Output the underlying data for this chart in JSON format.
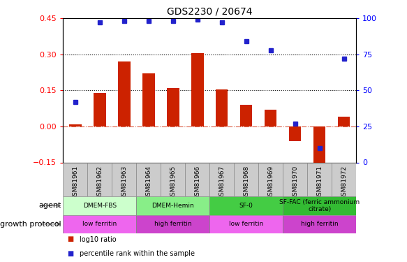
{
  "title": "GDS2230 / 20674",
  "samples": [
    "GSM81961",
    "GSM81962",
    "GSM81963",
    "GSM81964",
    "GSM81965",
    "GSM81966",
    "GSM81967",
    "GSM81968",
    "GSM81969",
    "GSM81970",
    "GSM81971",
    "GSM81972"
  ],
  "log10_ratio": [
    0.01,
    0.14,
    0.27,
    0.22,
    0.16,
    0.305,
    0.155,
    0.09,
    0.07,
    -0.06,
    -0.185,
    0.04
  ],
  "percentile_rank": [
    42,
    97,
    98,
    98,
    98,
    99,
    97,
    84,
    78,
    27,
    10,
    72
  ],
  "ylim_left": [
    -0.15,
    0.45
  ],
  "ylim_right": [
    0,
    100
  ],
  "yticks_left": [
    -0.15,
    0.0,
    0.15,
    0.3,
    0.45
  ],
  "yticks_right": [
    0,
    25,
    50,
    75,
    100
  ],
  "hlines_dotted": [
    0.15,
    0.3
  ],
  "hline_dashdot": 0.0,
  "bar_color": "#CC2200",
  "dot_color": "#2222CC",
  "agent_groups": [
    {
      "label": "DMEM-FBS",
      "start": 0,
      "end": 3,
      "color": "#CCFFCC"
    },
    {
      "label": "DMEM-Hemin",
      "start": 3,
      "end": 6,
      "color": "#88EE88"
    },
    {
      "label": "SF-0",
      "start": 6,
      "end": 9,
      "color": "#44CC44"
    },
    {
      "label": "SF-FAC (ferric ammonium\ncitrate)",
      "start": 9,
      "end": 12,
      "color": "#33BB33"
    }
  ],
  "protocol_groups": [
    {
      "label": "low ferritin",
      "start": 0,
      "end": 3,
      "color": "#EE66EE"
    },
    {
      "label": "high ferritin",
      "start": 3,
      "end": 6,
      "color": "#CC44CC"
    },
    {
      "label": "low ferritin",
      "start": 6,
      "end": 9,
      "color": "#EE66EE"
    },
    {
      "label": "high ferritin",
      "start": 9,
      "end": 12,
      "color": "#CC44CC"
    }
  ],
  "legend_items": [
    {
      "label": "log10 ratio",
      "color": "#CC2200"
    },
    {
      "label": "percentile rank within the sample",
      "color": "#2222CC"
    }
  ],
  "tick_bg_color": "#CCCCCC",
  "tick_border_color": "#888888"
}
